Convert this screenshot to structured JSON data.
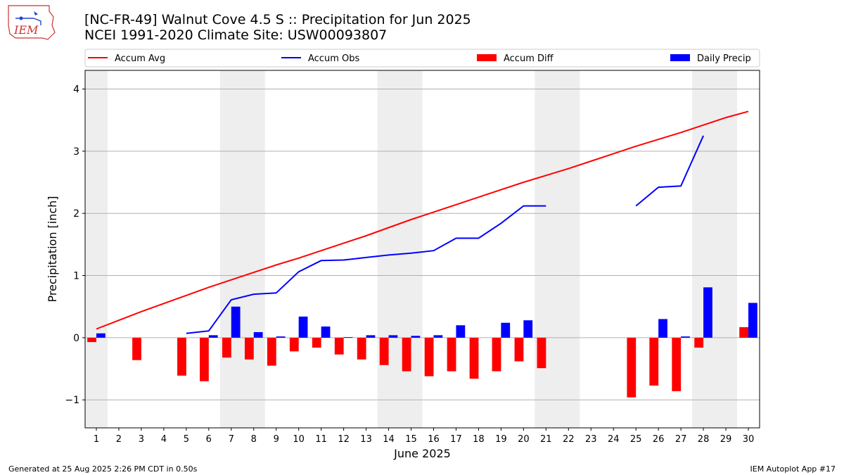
{
  "header": {
    "title_line1": "[NC-FR-49] Walnut Cove 4.5 S :: Precipitation for Jun 2025",
    "title_line2": "NCEI 1991-2020 Climate Site: USW00093807",
    "logo_text": "IEM"
  },
  "footer": {
    "left": "Generated at 25 Aug 2025 2:26 PM CDT in 0.50s",
    "right": "IEM Autoplot App #17"
  },
  "colors": {
    "accum_avg": "#ff0000",
    "accum_obs": "#0000ff",
    "accum_diff": "#ff0000",
    "daily_precip": "#0000ff",
    "weekend_shade": "#eeeeee",
    "grid": "#b0b0b0"
  },
  "chart_data": {
    "type": "bar",
    "xlabel": "June 2025",
    "ylabel": "Precipitation [inch]",
    "xlim": [
      0.5,
      30.5
    ],
    "ylim": [
      -1.45,
      4.3
    ],
    "y_ticks": [
      -1,
      0,
      1,
      2,
      3,
      4
    ],
    "x_ticks": [
      1,
      2,
      3,
      4,
      5,
      6,
      7,
      8,
      9,
      10,
      11,
      12,
      13,
      14,
      15,
      16,
      17,
      18,
      19,
      20,
      21,
      22,
      23,
      24,
      25,
      26,
      27,
      28,
      29,
      30
    ],
    "grid": "horizontal",
    "legend_position": "top",
    "weekend_shading": [
      [
        0.5,
        1.5
      ],
      [
        6.5,
        8.5
      ],
      [
        13.5,
        15.5
      ],
      [
        20.5,
        22.5
      ],
      [
        27.5,
        29.5
      ]
    ],
    "series": [
      {
        "name": "Accum Avg",
        "kind": "line",
        "x": [
          1,
          2,
          3,
          4,
          5,
          6,
          7,
          8,
          9,
          10,
          11,
          12,
          13,
          14,
          15,
          16,
          17,
          18,
          19,
          20,
          21,
          22,
          23,
          24,
          25,
          26,
          27,
          28,
          29,
          30
        ],
        "values": [
          0.14,
          0.28,
          0.42,
          0.55,
          0.68,
          0.81,
          0.93,
          1.05,
          1.17,
          1.28,
          1.4,
          1.52,
          1.64,
          1.77,
          1.9,
          2.02,
          2.14,
          2.26,
          2.38,
          2.5,
          2.61,
          2.72,
          2.84,
          2.96,
          3.08,
          3.19,
          3.3,
          3.42,
          3.54,
          3.64
        ]
      },
      {
        "name": "Accum Obs",
        "kind": "line",
        "x": [
          1,
          2,
          3,
          4,
          5,
          6,
          7,
          8,
          9,
          10,
          11,
          12,
          13,
          14,
          15,
          16,
          17,
          18,
          19,
          20,
          21,
          22,
          23,
          24,
          25,
          26,
          27,
          28,
          29,
          30
        ],
        "values": [
          null,
          null,
          null,
          null,
          0.07,
          0.11,
          0.61,
          0.7,
          0.72,
          1.06,
          1.24,
          1.25,
          1.29,
          1.33,
          1.36,
          1.4,
          1.6,
          1.6,
          1.84,
          2.12,
          2.12,
          null,
          null,
          null,
          2.12,
          2.42,
          2.44,
          3.25,
          null,
          null
        ]
      },
      {
        "name": "Accum Diff",
        "kind": "bar",
        "x": [
          1,
          2,
          3,
          4,
          5,
          6,
          7,
          8,
          9,
          10,
          11,
          12,
          13,
          14,
          15,
          16,
          17,
          18,
          19,
          20,
          21,
          22,
          23,
          24,
          25,
          26,
          27,
          28,
          29,
          30
        ],
        "values": [
          -0.07,
          0,
          -0.36,
          0,
          -0.61,
          -0.7,
          -0.32,
          -0.35,
          -0.45,
          -0.22,
          -0.16,
          -0.27,
          -0.35,
          -0.44,
          -0.54,
          -0.62,
          -0.54,
          -0.66,
          -0.54,
          -0.38,
          -0.49,
          0,
          0,
          0,
          -0.96,
          -0.77,
          -0.86,
          -0.16,
          0,
          0.17
        ]
      },
      {
        "name": "Daily Precip",
        "kind": "bar",
        "x": [
          1,
          2,
          3,
          4,
          5,
          6,
          7,
          8,
          9,
          10,
          11,
          12,
          13,
          14,
          15,
          16,
          17,
          18,
          19,
          20,
          21,
          22,
          23,
          24,
          25,
          26,
          27,
          28,
          29,
          30
        ],
        "values": [
          0.07,
          0,
          0,
          0,
          0,
          0.04,
          0.5,
          0.09,
          0.02,
          0.34,
          0.18,
          0.01,
          0.04,
          0.04,
          0.03,
          0.04,
          0.2,
          0,
          0.24,
          0.28,
          0,
          0,
          0,
          0,
          0,
          0.3,
          0.02,
          0.81,
          0,
          0.56
        ]
      }
    ]
  }
}
